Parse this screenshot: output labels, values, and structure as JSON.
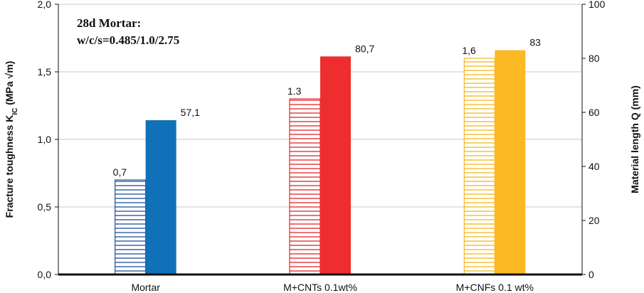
{
  "chart_data": {
    "type": "bar",
    "annotation": [
      "28d Mortar:",
      "w/c/s=0.485/1.0/2.75"
    ],
    "categories": [
      "Mortar",
      "M+CNTs 0.1wt%",
      "M+CNFs 0.1 wt%"
    ],
    "series": [
      {
        "axis": "left",
        "pattern": "hatched",
        "values": [
          0.7,
          1.3,
          1.6
        ],
        "labels": [
          "0,7",
          "1.3",
          "1,6"
        ],
        "colors": [
          "#1f4e9c",
          "#e0262b",
          "#f4b821"
        ]
      },
      {
        "axis": "right",
        "pattern": "solid",
        "values": [
          57.1,
          80.7,
          83
        ],
        "labels": [
          "57,1",
          "80,7",
          "83"
        ],
        "colors": [
          "#1070b8",
          "#ee2e2e",
          "#fbb923"
        ]
      }
    ],
    "yleft": {
      "label_main": "Fracture toughness K",
      "label_sub": "IC",
      "label_tail": " (MPa √m)",
      "lim": [
        0,
        2.0
      ],
      "ticks": [
        0,
        0.5,
        1.0,
        1.5,
        2.0
      ],
      "tick_labels": [
        "0,0",
        "0,5",
        "1,0",
        "1,5",
        "2,0"
      ]
    },
    "yright": {
      "label": "Material length Q (mm)",
      "lim": [
        0,
        100
      ],
      "ticks": [
        0,
        20,
        40,
        60,
        80,
        100
      ],
      "tick_labels": [
        "0",
        "20",
        "40",
        "60",
        "80",
        "100"
      ]
    },
    "grid": true,
    "legend": "none"
  }
}
